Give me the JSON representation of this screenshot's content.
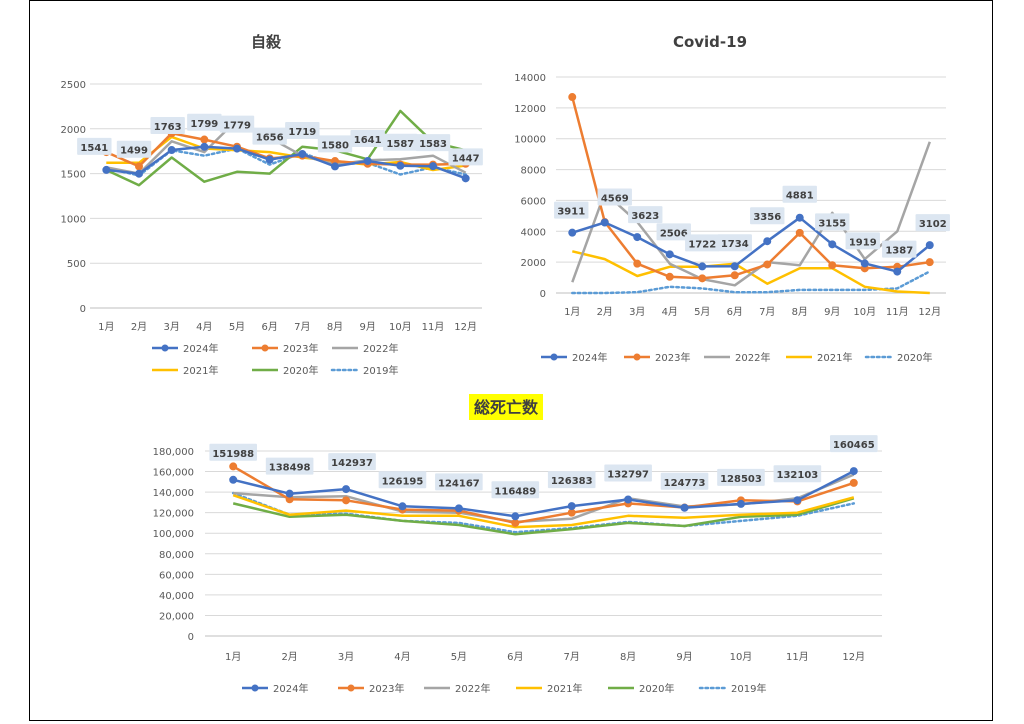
{
  "chart_data": [
    {
      "type": "line",
      "title": "自殺",
      "categories": [
        "1月",
        "2月",
        "3月",
        "4月",
        "5月",
        "6月",
        "7月",
        "8月",
        "9月",
        "10月",
        "11月",
        "12月"
      ],
      "ylim": [
        0,
        2500
      ],
      "ytick_labels": [
        "0",
        "500",
        "1000",
        "1500",
        "2000",
        "2500"
      ],
      "yticks": [
        0,
        500,
        1000,
        1500,
        2000,
        2500
      ],
      "grid": true,
      "legend_position": "bottom",
      "series": [
        {
          "name": "2024年",
          "color": "#4472C4",
          "marker": true,
          "style": "solid",
          "values": [
            1541,
            1499,
            1763,
            1799,
            1779,
            1656,
            1719,
            1580,
            1641,
            1587,
            1583,
            1447
          ]
        },
        {
          "name": "2023年",
          "color": "#ED7D31",
          "marker": true,
          "style": "solid",
          "values": [
            1740,
            1580,
            1950,
            1880,
            1800,
            1670,
            1700,
            1640,
            1610,
            1600,
            1600,
            1610
          ]
        },
        {
          "name": "2022年",
          "color": "#A5A5A5",
          "marker": false,
          "style": "solid",
          "values": [
            1570,
            1500,
            1860,
            1740,
            2100,
            1900,
            1700,
            1600,
            1650,
            1660,
            1700,
            1510
          ]
        },
        {
          "name": "2021年",
          "color": "#FFC000",
          "marker": false,
          "style": "solid",
          "values": [
            1620,
            1620,
            1910,
            1780,
            1760,
            1740,
            1680,
            1640,
            1600,
            1630,
            1540,
            1590
          ]
        },
        {
          "name": "2020年",
          "color": "#70AD47",
          "marker": false,
          "style": "solid",
          "values": [
            1540,
            1370,
            1680,
            1410,
            1520,
            1500,
            1800,
            1760,
            1660,
            2200,
            1850,
            1760
          ]
        },
        {
          "name": "2019年",
          "color": "#5B9BD5",
          "marker": false,
          "style": "dotted",
          "values": [
            1560,
            1480,
            1760,
            1700,
            1780,
            1600,
            1730,
            1600,
            1620,
            1490,
            1570,
            1490
          ]
        }
      ],
      "labels": {
        "series_index": 0,
        "values": [
          "1541",
          "1499",
          "1763",
          "1799",
          "1779",
          "1656",
          "1719",
          "1580",
          "1641",
          "1587",
          "1583",
          "1447"
        ]
      }
    },
    {
      "type": "line",
      "title": "Covid-19",
      "categories": [
        "1月",
        "2月",
        "3月",
        "4月",
        "5月",
        "6月",
        "7月",
        "8月",
        "9月",
        "10月",
        "11月",
        "12月"
      ],
      "ylim": [
        0,
        14000
      ],
      "ytick_labels": [
        "0",
        "2000",
        "4000",
        "6000",
        "8000",
        "10000",
        "12000",
        "14000"
      ],
      "yticks": [
        0,
        2000,
        4000,
        6000,
        8000,
        10000,
        12000,
        14000
      ],
      "grid": true,
      "legend_position": "bottom",
      "series": [
        {
          "name": "2024年",
          "color": "#4472C4",
          "marker": true,
          "style": "solid",
          "values": [
            3911,
            4569,
            3623,
            2506,
            1722,
            1734,
            3356,
            4881,
            3155,
            1919,
            1387,
            3102
          ]
        },
        {
          "name": "2023年",
          "color": "#ED7D31",
          "marker": true,
          "style": "solid",
          "values": [
            12700,
            4600,
            1900,
            1050,
            950,
            1150,
            1850,
            3900,
            1800,
            1600,
            1700,
            2000
          ]
        },
        {
          "name": "2022年",
          "color": "#A5A5A5",
          "marker": false,
          "style": "solid",
          "values": [
            700,
            6500,
            4600,
            1900,
            900,
            500,
            2000,
            1800,
            5200,
            2200,
            4000,
            9800
          ]
        },
        {
          "name": "2021年",
          "color": "#FFC000",
          "marker": false,
          "style": "solid",
          "values": [
            2700,
            2200,
            1100,
            1700,
            1700,
            1900,
            600,
            1600,
            1600,
            400,
            100,
            0
          ]
        },
        {
          "name": "2020年",
          "color": "#5B9BD5",
          "marker": false,
          "style": "dotted",
          "values": [
            0,
            0,
            50,
            400,
            300,
            50,
            50,
            200,
            200,
            200,
            300,
            1400
          ]
        }
      ],
      "labels": {
        "series_index": 0,
        "values": [
          "3911",
          "4569",
          "3623",
          "2506",
          "1722",
          "1734",
          "3356",
          "4881",
          "3155",
          "1919",
          "1387",
          "3102"
        ]
      }
    },
    {
      "type": "line",
      "title": "総死亡数",
      "categories": [
        "1月",
        "2月",
        "3月",
        "4月",
        "5月",
        "6月",
        "7月",
        "8月",
        "9月",
        "10月",
        "11月",
        "12月"
      ],
      "ylim": [
        0,
        180000
      ],
      "ytick_labels": [
        "0",
        "20,000",
        "40,000",
        "60,000",
        "80,000",
        "100,000",
        "120,000",
        "140,000",
        "160,000",
        "180,000"
      ],
      "yticks": [
        0,
        20000,
        40000,
        60000,
        80000,
        100000,
        120000,
        140000,
        160000,
        180000
      ],
      "grid": true,
      "legend_position": "bottom",
      "series": [
        {
          "name": "2024年",
          "color": "#4472C4",
          "marker": true,
          "style": "solid",
          "values": [
            151988,
            138498,
            142937,
            126195,
            124167,
            116489,
            126383,
            132797,
            124773,
            128503,
            132103,
            160465
          ]
        },
        {
          "name": "2023年",
          "color": "#ED7D31",
          "marker": true,
          "style": "solid",
          "values": [
            165000,
            133000,
            132000,
            123000,
            122000,
            110000,
            120000,
            129000,
            125000,
            132000,
            131000,
            149000
          ]
        },
        {
          "name": "2022年",
          "color": "#A5A5A5",
          "marker": false,
          "style": "solid",
          "values": [
            139000,
            135000,
            136000,
            121000,
            120000,
            111000,
            114000,
            134000,
            126000,
            128000,
            134000,
            157000
          ]
        },
        {
          "name": "2021年",
          "color": "#FFC000",
          "marker": false,
          "style": "solid",
          "values": [
            137000,
            118000,
            122000,
            117000,
            117000,
            106000,
            108000,
            117000,
            115000,
            118000,
            120000,
            135000
          ]
        },
        {
          "name": "2020年",
          "color": "#70AD47",
          "marker": false,
          "style": "solid",
          "values": [
            129000,
            116000,
            118000,
            112000,
            108000,
            99000,
            104000,
            110000,
            107000,
            116000,
            118000,
            134000
          ]
        },
        {
          "name": "2019年",
          "color": "#5B9BD5",
          "marker": false,
          "style": "dotted",
          "values": [
            139000,
            118000,
            119000,
            112000,
            110000,
            101000,
            105000,
            111000,
            107000,
            112000,
            117000,
            129000
          ]
        }
      ],
      "labels": {
        "series_index": 0,
        "values": [
          "151988",
          "138498",
          "142937",
          "126195",
          "124167",
          "116489",
          "126383",
          "132797",
          "124773",
          "128503",
          "132103",
          "160465"
        ]
      }
    }
  ]
}
